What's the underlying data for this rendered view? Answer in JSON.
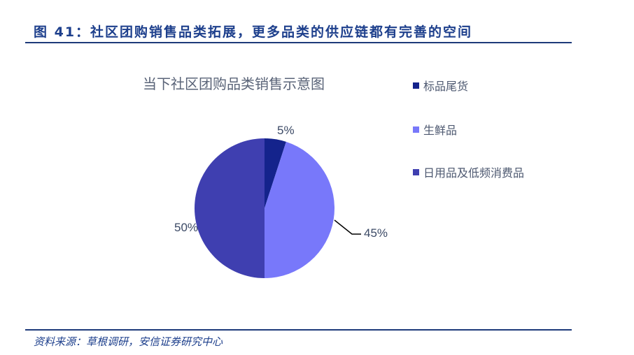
{
  "figure": {
    "title": "图 41：社区团购销售品类拓展，更多品类的供应链都有完善的空间",
    "source": "资料来源：草根调研，安信证券研究中心"
  },
  "chart_data": {
    "type": "pie",
    "title": "当下社区团购品类销售示意图",
    "categories": [
      "标品尾货",
      "生鲜品",
      "日用品及低频消费品"
    ],
    "values": [
      5,
      45,
      50
    ],
    "labels": [
      "5%",
      "45%",
      "50%"
    ],
    "colors": [
      "#14238c",
      "#7878fa",
      "#3f3fb0"
    ],
    "legend_position": "right",
    "start_angle": "12 o'clock, clockwise"
  },
  "legend": {
    "items": [
      {
        "label": "标品尾货",
        "color": "#14238c"
      },
      {
        "label": "生鲜品",
        "color": "#7878fa"
      },
      {
        "label": "日用品及低频消费品",
        "color": "#3f3fb0"
      }
    ]
  }
}
